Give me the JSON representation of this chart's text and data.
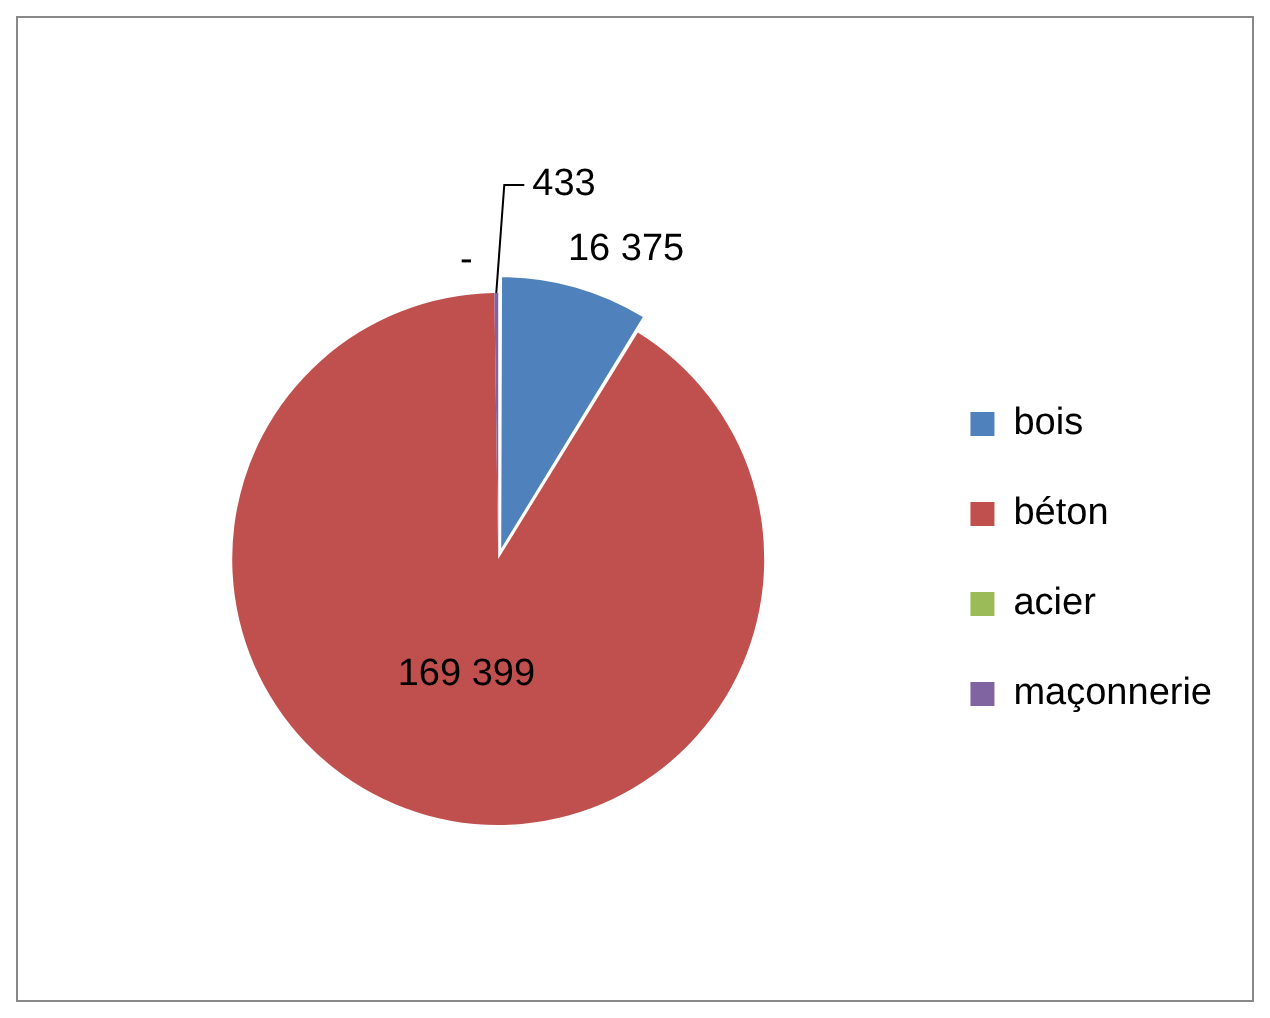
{
  "chart_data": {
    "type": "pie",
    "categories": [
      "bois",
      "béton",
      "acier",
      "maçonnerie"
    ],
    "values": [
      16375,
      169399,
      0,
      433
    ],
    "value_labels": [
      "16 375",
      "169 399",
      "-",
      "433"
    ],
    "colors": [
      "#4f81bd",
      "#c0504d",
      "#9bbb59",
      "#8064a2"
    ],
    "legend": "right"
  }
}
